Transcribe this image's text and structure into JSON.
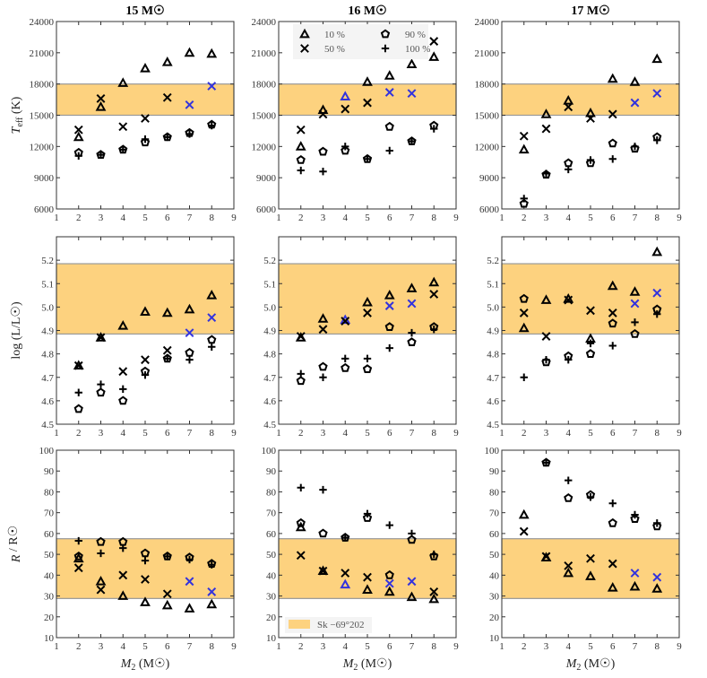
{
  "chart_data": {
    "type": "scatter",
    "column_titles": [
      "15 M☉",
      "16 M☉",
      "17 M☉"
    ],
    "xlabel": {
      "main": "M",
      "sub": "2",
      "unit": " (M☉)"
    },
    "xlim": [
      1,
      9
    ],
    "xticks": [
      "1",
      "2",
      "3",
      "4",
      "5",
      "6",
      "7",
      "8",
      "9"
    ],
    "x": [
      2,
      3,
      4,
      5,
      6,
      7,
      8
    ],
    "highlight_color": "#3333dd",
    "band_color": "#fdd27f",
    "band_label": "Sk −69°202",
    "legend": [
      {
        "marker": "triangle",
        "label": "10 %"
      },
      {
        "marker": "pentagon",
        "label": "90 %"
      },
      {
        "marker": "x",
        "label": "50 %"
      },
      {
        "marker": "plus",
        "label": "100 %"
      }
    ],
    "rows": [
      {
        "quantity": "Teff",
        "ylabel": {
          "main": "T",
          "sub": "eff",
          "unit": " (K)"
        },
        "ylim": [
          6000,
          24000
        ],
        "yticks": [
          "6000",
          "9000",
          "12000",
          "15000",
          "18000",
          "21000",
          "24000"
        ],
        "band": [
          15000,
          18000
        ],
        "panels": [
          {
            "series": {
              "10%": [
                12900,
                15800,
                18100,
                19500,
                20100,
                21000,
                20900
              ],
              "50%": [
                13600,
                16600,
                13900,
                14700,
                16700,
                16000,
                17800
              ],
              "90%": [
                11400,
                11200,
                11700,
                12400,
                12900,
                13300,
                14100
              ],
              "100%": [
                11100,
                11200,
                11700,
                12700,
                12900,
                13200,
                14000
              ]
            },
            "highlighted": {
              "50%": [
                7,
                8
              ]
            }
          },
          {
            "series": {
              "10%": [
                12000,
                15500,
                16800,
                18200,
                18800,
                19900,
                20600
              ],
              "50%": [
                13600,
                15100,
                15600,
                16200,
                17200,
                17100,
                22100
              ],
              "90%": [
                10700,
                11500,
                11600,
                10800,
                13900,
                12500,
                14000
              ],
              "100%": [
                9700,
                9600,
                12000,
                10800,
                11600,
                12500,
                13700
              ]
            },
            "highlighted": {
              "10%": [
                4
              ],
              "50%": [
                6,
                7
              ]
            }
          },
          {
            "series": {
              "10%": [
                11700,
                15100,
                16400,
                15200,
                18500,
                18200,
                20400
              ],
              "50%": [
                13000,
                13700,
                15800,
                14700,
                15100,
                16200,
                17100
              ],
              "90%": [
                6500,
                9300,
                10400,
                10400,
                12300,
                11800,
                12900
              ],
              "100%": [
                7000,
                9400,
                9800,
                10700,
                10800,
                12000,
                12600
              ]
            },
            "highlighted": {
              "50%": [
                7,
                8
              ]
            }
          }
        ]
      },
      {
        "quantity": "logL",
        "ylabel": {
          "main": "log (L/L☉)",
          "sub": "",
          "unit": ""
        },
        "ylim": [
          4.5,
          5.3
        ],
        "yticks": [
          "4.5",
          "4.6",
          "4.7",
          "4.8",
          "4.9",
          "5.0",
          "5.1",
          "5.2"
        ],
        "band": [
          4.885,
          5.185
        ],
        "panels": [
          {
            "series": {
              "10%": [
                4.75,
                4.87,
                4.92,
                4.98,
                4.975,
                4.99,
                5.05
              ],
              "50%": [
                4.75,
                4.87,
                4.725,
                4.775,
                4.815,
                4.89,
                4.955
              ],
              "90%": [
                4.565,
                4.635,
                4.6,
                4.725,
                4.78,
                4.805,
                4.86
              ],
              "100%": [
                4.635,
                4.67,
                4.65,
                4.71,
                4.78,
                4.775,
                4.83
              ]
            },
            "highlighted": {
              "50%": [
                7,
                8
              ]
            }
          },
          {
            "series": {
              "10%": [
                4.87,
                4.95,
                4.945,
                5.02,
                5.05,
                5.08,
                5.105
              ],
              "50%": [
                4.875,
                4.905,
                4.94,
                4.975,
                5.005,
                5.015,
                5.055
              ],
              "90%": [
                4.685,
                4.745,
                4.74,
                4.735,
                4.915,
                4.85,
                4.915
              ],
              "100%": [
                4.715,
                4.7,
                4.78,
                4.78,
                4.825,
                4.89,
                4.905
              ]
            },
            "highlighted": {
              "10%": [
                4
              ],
              "50%": [
                6,
                7
              ]
            }
          },
          {
            "series": {
              "10%": [
                4.91,
                5.03,
                5.035,
                4.865,
                5.09,
                5.065,
                5.235
              ],
              "50%": [
                4.975,
                4.875,
                5.03,
                4.985,
                4.975,
                5.015,
                5.06
              ],
              "90%": [
                5.035,
                4.765,
                4.79,
                4.8,
                4.93,
                4.885,
                4.99
              ],
              "100%": [
                4.7,
                4.775,
                4.775,
                4.845,
                4.835,
                4.935,
                4.97
              ]
            },
            "highlighted": {
              "50%": [
                7,
                8
              ]
            }
          }
        ]
      },
      {
        "quantity": "R",
        "ylabel": {
          "main": "R",
          "sub": "",
          "unit": " / R☉"
        },
        "ylim": [
          10,
          100
        ],
        "yticks": [
          "10",
          "20",
          "30",
          "40",
          "50",
          "60",
          "70",
          "80",
          "90",
          "100"
        ],
        "band": [
          28.8,
          57.5
        ],
        "panels": [
          {
            "series": {
              "10%": [
                48,
                37,
                30,
                27,
                25.5,
                24,
                26
              ],
              "50%": [
                43.5,
                33,
                40,
                38,
                31,
                37,
                32
              ],
              "90%": [
                49,
                56,
                56,
                50.5,
                49,
                48.5,
                45.5
              ],
              "100%": [
                56.5,
                50.5,
                53,
                47,
                49,
                47.5,
                45
              ]
            },
            "highlighted": {
              "50%": [
                7,
                8
              ]
            }
          },
          {
            "series": {
              "10%": [
                63,
                42,
                35.5,
                33,
                32,
                29.5,
                28.5
              ],
              "50%": [
                49.5,
                42,
                41,
                39,
                36,
                37,
                32
              ],
              "90%": [
                65,
                60,
                58,
                67.5,
                40,
                57,
                49
              ],
              "100%": [
                82,
                81,
                58,
                69.5,
                64,
                60,
                50
              ]
            },
            "highlighted": {
              "10%": [
                4
              ],
              "50%": [
                6,
                7
              ]
            }
          },
          {
            "series": {
              "10%": [
                69,
                48.5,
                41,
                39.5,
                34,
                34.5,
                33.5
              ],
              "50%": [
                61,
                49,
                44.5,
                48,
                45.5,
                41,
                39
              ],
              "90%": [
                null,
                94,
                77,
                78.5,
                65,
                67,
                63.5
              ],
              "100%": [
                null,
                94,
                85.5,
                77.5,
                74.5,
                69,
                65
              ]
            },
            "highlighted": {
              "50%": [
                7,
                8
              ]
            }
          }
        ]
      }
    ]
  }
}
